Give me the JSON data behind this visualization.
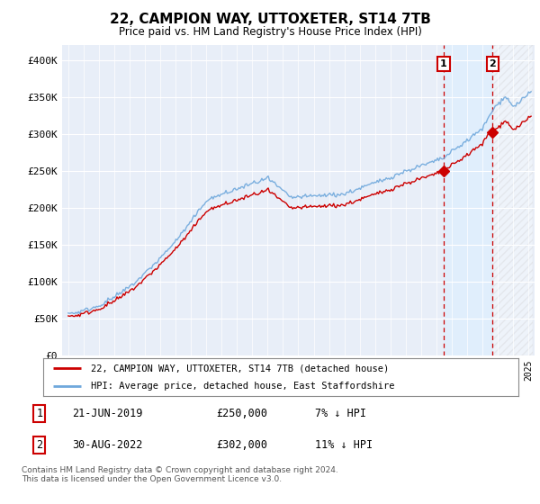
{
  "title": "22, CAMPION WAY, UTTOXETER, ST14 7TB",
  "subtitle": "Price paid vs. HM Land Registry's House Price Index (HPI)",
  "ylim": [
    0,
    420000
  ],
  "yticks": [
    0,
    50000,
    100000,
    150000,
    200000,
    250000,
    300000,
    350000,
    400000
  ],
  "ytick_labels": [
    "£0",
    "£50K",
    "£100K",
    "£150K",
    "£200K",
    "£250K",
    "£300K",
    "£350K",
    "£400K"
  ],
  "hpi_color": "#6fa8dc",
  "price_color": "#cc0000",
  "shade_color": "#ddeeff",
  "marker1_year": 2019.47,
  "marker1_price": 250000,
  "marker2_year": 2022.66,
  "marker2_price": 302000,
  "legend_line1": "22, CAMPION WAY, UTTOXETER, ST14 7TB (detached house)",
  "legend_line2": "HPI: Average price, detached house, East Staffordshire",
  "table_row1": [
    "1",
    "21-JUN-2019",
    "£250,000",
    "7% ↓ HPI"
  ],
  "table_row2": [
    "2",
    "30-AUG-2022",
    "£302,000",
    "11% ↓ HPI"
  ],
  "footnote": "Contains HM Land Registry data © Crown copyright and database right 2024.\nThis data is licensed under the Open Government Licence v3.0.",
  "background_color": "#e8eef8"
}
